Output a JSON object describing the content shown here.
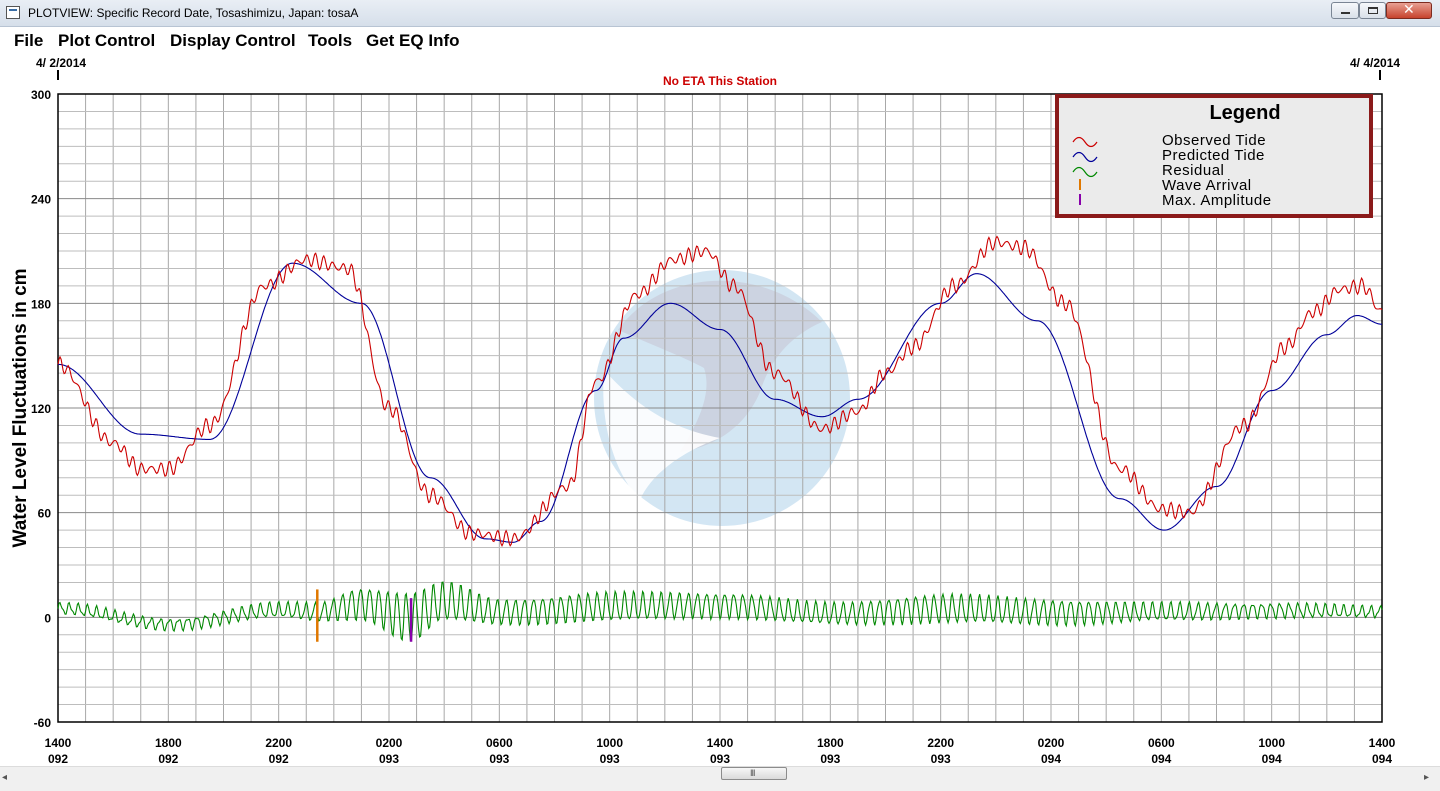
{
  "window": {
    "title": "PLOTVIEW: Specific Record Date, Tosashimizu, Japan: tosaA",
    "icon": "plot-window-icon"
  },
  "menu": {
    "file": "File",
    "plot_control": "Plot Control",
    "display_control": "Display Control",
    "tools": "Tools",
    "get_eq_info": "Get EQ Info"
  },
  "scrollbar": {
    "grip": "III",
    "left_arrow": "◂",
    "right_arrow": "▸"
  },
  "chart_data": {
    "type": "line",
    "subtitle": "No ETA This Station",
    "date_start": "4/ 2/2014",
    "date_end": "4/ 4/2014",
    "ylabel": "Water Level Fluctuations in cm",
    "xlabel": "",
    "ylim": [
      -60,
      300
    ],
    "xlim": [
      0,
      48
    ],
    "y_ticks": [
      -60,
      0,
      60,
      120,
      180,
      240,
      300
    ],
    "x_tick_labels": [
      {
        "x": 0,
        "time": "1400",
        "day": "092"
      },
      {
        "x": 4,
        "time": "1800",
        "day": "092"
      },
      {
        "x": 8,
        "time": "2200",
        "day": "092"
      },
      {
        "x": 12,
        "time": "0200",
        "day": "093"
      },
      {
        "x": 16,
        "time": "0600",
        "day": "093"
      },
      {
        "x": 20,
        "time": "1000",
        "day": "093"
      },
      {
        "x": 24,
        "time": "1400",
        "day": "093"
      },
      {
        "x": 28,
        "time": "1800",
        "day": "093"
      },
      {
        "x": 32,
        "time": "2200",
        "day": "093"
      },
      {
        "x": 36,
        "time": "0200",
        "day": "094"
      },
      {
        "x": 40,
        "time": "0600",
        "day": "094"
      },
      {
        "x": 44,
        "time": "1000",
        "day": "094"
      },
      {
        "x": 48,
        "time": "1400",
        "day": "094"
      }
    ],
    "grid": true,
    "legend": {
      "title": "Legend",
      "position": "top-right",
      "entries": [
        {
          "label": "Observed Tide",
          "color": "#cc0000"
        },
        {
          "label": "Predicted Tide",
          "color": "#000099"
        },
        {
          "label": "Residual",
          "color": "#008800"
        },
        {
          "label": "Wave Arrival",
          "color": "#e07800"
        },
        {
          "label": "Max. Amplitude",
          "color": "#8800aa"
        }
      ]
    },
    "series": [
      {
        "name": "Predicted Tide",
        "color": "#000099",
        "x": [
          0,
          3,
          5.5,
          8.5,
          11,
          13.5,
          15.5,
          16.5,
          17.5,
          19.5,
          20.5,
          22.2,
          24,
          26,
          27.7,
          29,
          32,
          33.3,
          35.5,
          38.5,
          40.1,
          42,
          44,
          46,
          47.1,
          48
        ],
        "y": [
          145,
          105,
          102,
          203,
          180,
          80,
          45,
          43,
          55,
          130,
          160,
          180,
          165,
          125,
          115,
          125,
          180,
          197,
          170,
          68,
          50,
          75,
          130,
          162,
          173,
          168
        ]
      },
      {
        "name": "Observed Tide",
        "color": "#cc0000",
        "x": [
          0,
          2,
          3,
          4,
          5.5,
          7.5,
          9,
          10.5,
          12,
          13.5,
          15,
          16.5,
          18.5,
          19.5,
          21,
          22.3,
          23.5,
          24.5,
          26,
          27.7,
          29,
          30,
          31,
          32.5,
          34,
          35,
          36.5,
          38.5,
          40,
          41,
          43,
          44.5,
          45.5,
          46.5,
          47.3,
          48
        ],
        "y": [
          145,
          100,
          85,
          85,
          110,
          190,
          205,
          200,
          120,
          70,
          48,
          45,
          75,
          135,
          185,
          205,
          210,
          190,
          140,
          108,
          118,
          140,
          155,
          190,
          215,
          212,
          180,
          85,
          62,
          60,
          110,
          155,
          175,
          188,
          190,
          175
        ]
      },
      {
        "name": "Residual",
        "color": "#008800",
        "x": [
          0,
          4,
          8,
          9.4,
          11,
          12.8,
          14,
          16,
          20,
          24,
          28,
          32,
          36,
          40,
          44,
          48
        ],
        "y": [
          5,
          -4,
          4,
          3,
          8,
          0,
          9,
          3,
          6,
          7,
          2,
          5,
          3,
          3,
          4,
          3
        ],
        "amplitude": [
          3,
          3,
          4,
          5,
          9,
          14,
          11,
          7,
          8,
          7,
          6,
          8,
          7,
          5,
          4,
          3
        ],
        "period_hours": 0.33
      }
    ],
    "markers": [
      {
        "name": "Wave Arrival",
        "x": 9.4,
        "y_from": -14,
        "y_to": 16,
        "color": "#e07800"
      },
      {
        "name": "Max. Amplitude",
        "x": 12.8,
        "y_from": -14,
        "y_to": 11,
        "color": "#8800aa"
      }
    ]
  }
}
